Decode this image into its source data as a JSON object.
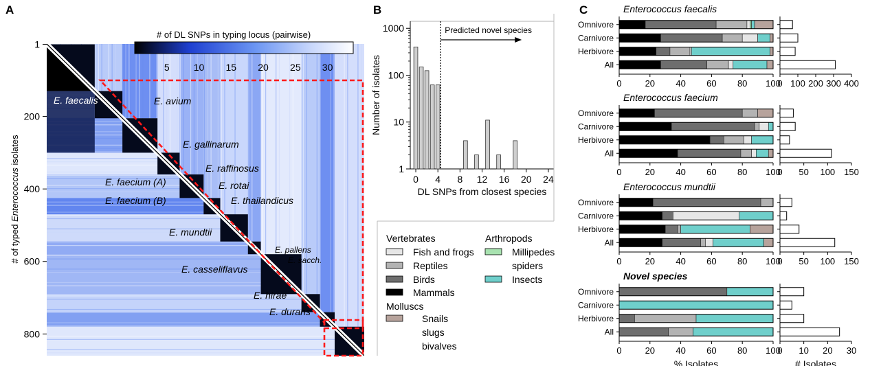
{
  "panel_labels": {
    "a": "A",
    "b": "B",
    "c": "C"
  },
  "colors": {
    "black": "#000000",
    "mammals": "#000000",
    "birds": "#6e6e6e",
    "reptiles": "#b3b3b3",
    "fish": "#e6e6e6",
    "millipedes": "#a8e2b0",
    "insects": "#6fcfcb",
    "snails": "#b7a39c",
    "heat_low": "#0a1f7a",
    "heat_mid": "#4a7cf0",
    "heat_high": "#eef2fd",
    "dash": "#ff0000"
  },
  "panel_a": {
    "colorbar_title": "# of DL SNPs in typing locus (pairwise)",
    "colorbar_ticks": [
      "5",
      "10",
      "15",
      "20",
      "25",
      "30"
    ],
    "ylabel_pre": "# of typed ",
    "ylabel_italic": "Enterococcus",
    "ylabel_post": " isolates",
    "yticks": [
      "1",
      "200",
      "400",
      "600",
      "800"
    ],
    "species": [
      "E. faecalis",
      "E. avium",
      "E. gallinarum",
      "E. raffinosus",
      "E. faecium (A)",
      "E. rotai",
      "E. faecium (B)",
      "E. thailandicus",
      "E. mundtii",
      "E. pallens",
      "E. sacch.",
      "E. casseliflavus",
      "E. hirae",
      "E. durans"
    ],
    "blocks": [
      {
        "name": "E. faecalis",
        "start": 1,
        "end": 130
      },
      {
        "name": "E. avium",
        "start": 130,
        "end": 205
      },
      {
        "name": "E. gallinarum",
        "start": 205,
        "end": 300
      },
      {
        "name": "E. raffinosus",
        "start": 300,
        "end": 360
      },
      {
        "name": "E. faecium (A)",
        "start": 360,
        "end": 425
      },
      {
        "name": "E. faecium (B)",
        "start": 425,
        "end": 470
      },
      {
        "name": "E. mundtii",
        "start": 470,
        "end": 545
      },
      {
        "name": "E. pallens",
        "start": 545,
        "end": 580
      },
      {
        "name": "E. casseliflavus",
        "start": 580,
        "end": 690
      },
      {
        "name": "E. hirae",
        "start": 690,
        "end": 740
      },
      {
        "name": "E. durans",
        "start": 740,
        "end": 780
      },
      {
        "name": "novel",
        "start": 780,
        "end": 860
      }
    ]
  },
  "chart_data": [
    {
      "type": "bar",
      "id": "B",
      "xlabel": "DL SNPs from closest species",
      "ylabel": "Number of isolates",
      "yscale": "log",
      "ylim": [
        1,
        1000
      ],
      "yticks": [
        "1",
        "10",
        "100",
        "1000"
      ],
      "xlim": [
        -1,
        25
      ],
      "xticks": [
        "0",
        "4",
        "8",
        "12",
        "16",
        "20",
        "24"
      ],
      "threshold": 4.5,
      "threshold_label": "Predicted novel species",
      "x": [
        0,
        1,
        2,
        3,
        4,
        5,
        9,
        10,
        11,
        12,
        13,
        14,
        15,
        16,
        17,
        18,
        20,
        22
      ],
      "values": [
        400,
        150,
        125,
        62,
        62,
        1,
        4,
        1,
        2,
        1,
        11,
        1,
        2,
        1,
        1,
        4,
        1,
        1
      ]
    },
    {
      "type": "stacked_bar",
      "title": "Enterococcus faecalis",
      "xlim": [
        0,
        100
      ],
      "xticks": [
        "0",
        "20",
        "40",
        "60",
        "80",
        "100"
      ],
      "categories": [
        "Omnivore",
        "Carnivore",
        "Herbivore",
        "All"
      ],
      "series": [
        {
          "name": "Mammals",
          "values": [
            17,
            27,
            24,
            27
          ]
        },
        {
          "name": "Birds",
          "values": [
            46,
            40,
            9,
            30
          ]
        },
        {
          "name": "Reptiles",
          "values": [
            20,
            13,
            13,
            14
          ]
        },
        {
          "name": "Fish and frogs",
          "values": [
            2,
            10,
            1,
            3
          ]
        },
        {
          "name": "Millipedes spiders",
          "values": [
            1,
            0,
            0,
            0
          ]
        },
        {
          "name": "Insects",
          "values": [
            2,
            8,
            51,
            22
          ]
        },
        {
          "name": "Snails slugs bivalves",
          "values": [
            12,
            2,
            2,
            4
          ]
        }
      ],
      "counts": {
        "values": [
          70,
          100,
          85,
          310
        ],
        "xlim": [
          0,
          400
        ],
        "xticks": [
          "0",
          "100",
          "200",
          "300",
          "400"
        ]
      }
    },
    {
      "type": "stacked_bar",
      "title": "Enterococcus faecium",
      "xlim": [
        0,
        100
      ],
      "xticks": [
        "0",
        "20",
        "40",
        "60",
        "80",
        "100"
      ],
      "categories": [
        "Omnivore",
        "Carnivore",
        "Herbivore",
        "All"
      ],
      "series": [
        {
          "name": "Mammals",
          "values": [
            23,
            34,
            59,
            38
          ]
        },
        {
          "name": "Birds",
          "values": [
            57,
            54,
            9,
            41
          ]
        },
        {
          "name": "Reptiles",
          "values": [
            10,
            3,
            13,
            7
          ]
        },
        {
          "name": "Fish and frogs",
          "values": [
            0,
            6,
            5,
            3
          ]
        },
        {
          "name": "Millipedes spiders",
          "values": [
            0,
            0,
            0,
            0
          ]
        },
        {
          "name": "Insects",
          "values": [
            0,
            3,
            14,
            8
          ]
        },
        {
          "name": "Snails slugs bivalves",
          "values": [
            10,
            0,
            0,
            3
          ]
        }
      ],
      "counts": {
        "values": [
          28,
          32,
          20,
          108
        ],
        "xlim": [
          0,
          150
        ],
        "xticks": [
          "0",
          "50",
          "100",
          "150"
        ]
      }
    },
    {
      "type": "stacked_bar",
      "title": "Enterococcus mundtii",
      "xlim": [
        0,
        100
      ],
      "xticks": [
        "0",
        "20",
        "40",
        "60",
        "80",
        "100"
      ],
      "categories": [
        "Omnivore",
        "Carnivore",
        "Herbivore",
        "All"
      ],
      "series": [
        {
          "name": "Mammals",
          "values": [
            22,
            28,
            30,
            28
          ]
        },
        {
          "name": "Birds",
          "values": [
            70,
            7,
            8,
            25
          ]
        },
        {
          "name": "Reptiles",
          "values": [
            8,
            0,
            2,
            3
          ]
        },
        {
          "name": "Fish and frogs",
          "values": [
            0,
            43,
            0,
            5
          ]
        },
        {
          "name": "Millipedes spiders",
          "values": [
            0,
            0,
            0,
            0
          ]
        },
        {
          "name": "Insects",
          "values": [
            0,
            22,
            45,
            33
          ]
        },
        {
          "name": "Snails slugs bivalves",
          "values": [
            0,
            0,
            15,
            6
          ]
        }
      ],
      "counts": {
        "values": [
          25,
          14,
          40,
          115
        ],
        "xlim": [
          0,
          150
        ],
        "xticks": [
          "0",
          "50",
          "100",
          "150"
        ]
      }
    },
    {
      "type": "stacked_bar",
      "title": "Novel species",
      "xlim": [
        0,
        100
      ],
      "xticks": [
        "0",
        "20",
        "40",
        "60",
        "80",
        "100"
      ],
      "xlabel": "% Isolates",
      "categories": [
        "Omnivore",
        "Carnivore",
        "Herbivore",
        "All"
      ],
      "series": [
        {
          "name": "Mammals",
          "values": [
            0,
            0,
            0,
            0
          ]
        },
        {
          "name": "Birds",
          "values": [
            70,
            0,
            10,
            32
          ]
        },
        {
          "name": "Reptiles",
          "values": [
            0,
            0,
            40,
            16
          ]
        },
        {
          "name": "Fish and frogs",
          "values": [
            0,
            0,
            0,
            0
          ]
        },
        {
          "name": "Millipedes spiders",
          "values": [
            0,
            0,
            0,
            0
          ]
        },
        {
          "name": "Insects",
          "values": [
            30,
            100,
            50,
            52
          ]
        },
        {
          "name": "Snails slugs bivalves",
          "values": [
            0,
            0,
            0,
            0
          ]
        }
      ],
      "counts": {
        "values": [
          10,
          5,
          10,
          25
        ],
        "xlim": [
          0,
          30
        ],
        "xticks": [
          "0",
          "10",
          "20",
          "30"
        ],
        "xlabel": "# Isolates"
      }
    }
  ],
  "legend": {
    "vertebrates_title": "Vertebrates",
    "arthropods_title": "Arthropods",
    "molluscs_title": "Molluscs",
    "fish": "Fish and frogs",
    "reptiles": "Reptiles",
    "birds": "Birds",
    "mammals": "Mammals",
    "millipedes": "Millipedes",
    "spiders": "spiders",
    "insects": "Insects",
    "snails": "Snails",
    "slugs": "slugs",
    "bivalves": "bivalves"
  }
}
